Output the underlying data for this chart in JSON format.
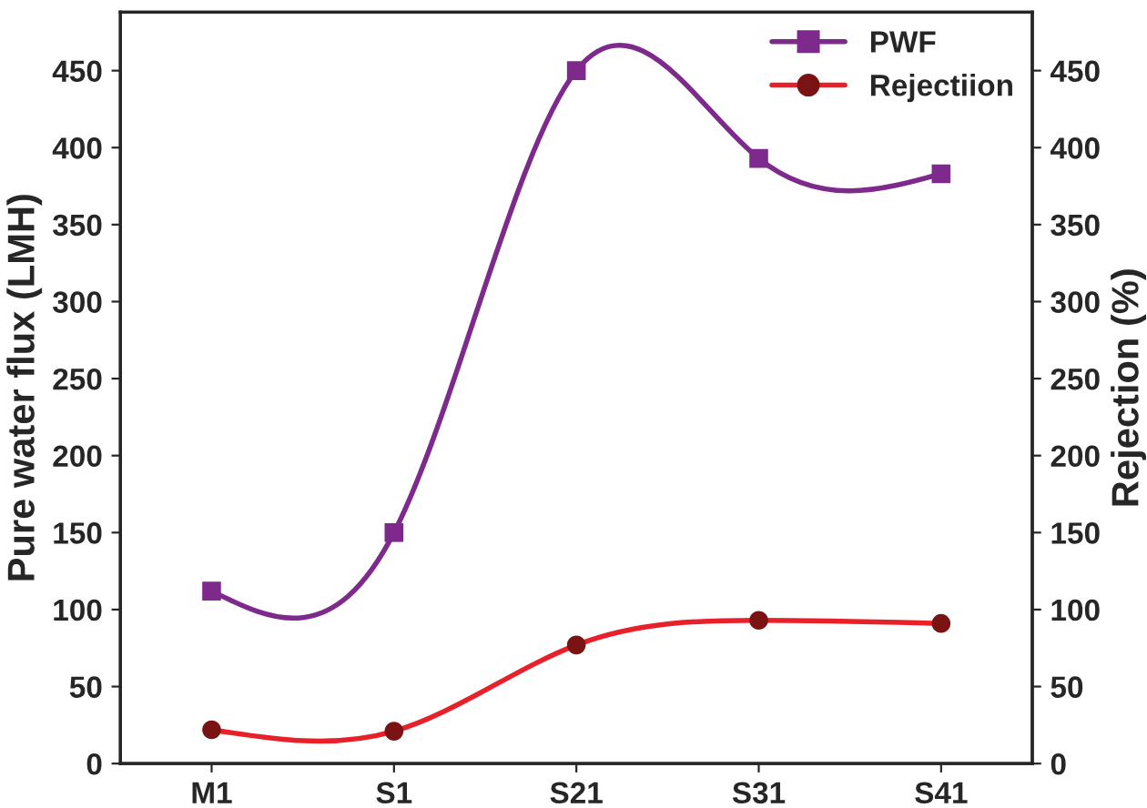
{
  "chart_data": {
    "type": "line",
    "xlabel": null,
    "ylabel": "Pure water flux (LMH)",
    "y2label": "Rejection (%)",
    "categories": [
      "M1",
      "S1",
      "S21",
      "S31",
      "S41"
    ],
    "series": [
      {
        "name": "PWF",
        "color": "#7d2a8c",
        "marker": "square",
        "values": [
          112,
          150,
          450,
          393,
          383
        ]
      },
      {
        "name": "Rejectiion",
        "color": "#e8202a",
        "colors": [
          "#7a1414",
          "#7a1414",
          "#7a1414",
          "#7a1414",
          "#7a1414"
        ],
        "marker": "circle",
        "axis": "y2",
        "values": [
          22,
          21,
          77,
          93,
          91
        ]
      }
    ],
    "ylim": [
      0,
      488
    ],
    "yticks": [
      0,
      50,
      100,
      150,
      200,
      250,
      300,
      350,
      400,
      450
    ],
    "y2lim": [
      0,
      488
    ],
    "y2ticks": [
      0,
      50,
      100,
      150,
      200,
      250,
      300,
      350,
      400,
      450
    ],
    "grid": false,
    "legend": "top right",
    "line_style": "solid"
  }
}
